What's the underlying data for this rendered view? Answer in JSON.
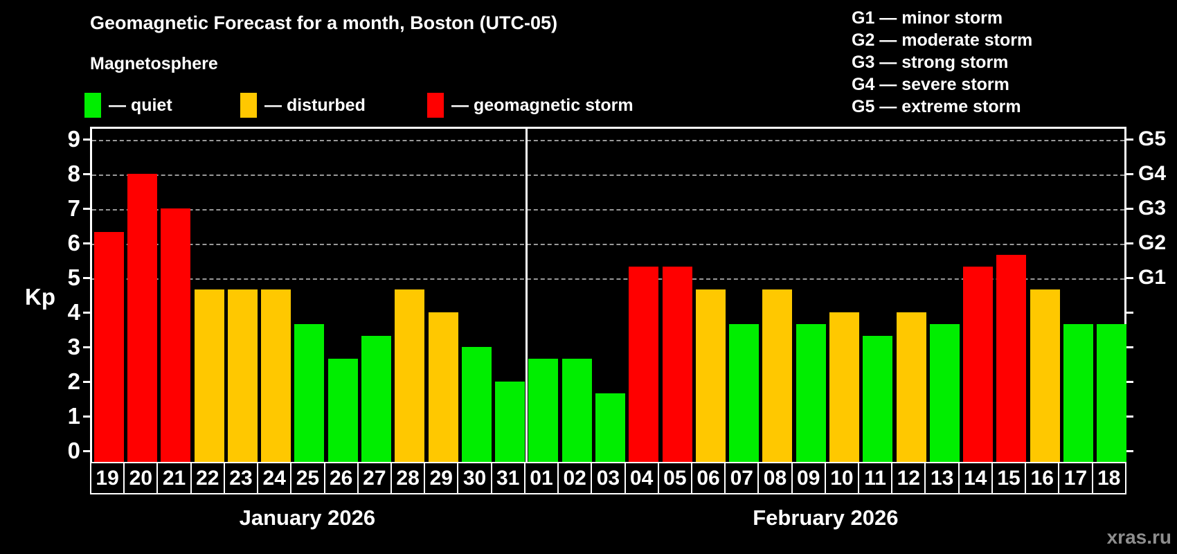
{
  "title": "Geomagnetic Forecast for a month, Boston (UTC-05)",
  "subtitle": "Magnetosphere",
  "legend": {
    "items": [
      {
        "name": "quiet",
        "label": "— quiet",
        "color": "#00ee00",
        "x": 122
      },
      {
        "name": "disturbed",
        "label": "— disturbed",
        "color": "#ffc800",
        "x": 347
      },
      {
        "name": "storm",
        "label": "— geomagnetic storm",
        "color": "#ff0000",
        "x": 617
      }
    ]
  },
  "g_legend": [
    "G1 — minor storm",
    "G2 — moderate storm",
    "G3 — strong storm",
    "G4 — severe storm",
    "G5 — extreme storm"
  ],
  "watermark": "xras.ru",
  "chart_data": {
    "type": "bar",
    "title": "Geomagnetic Forecast for a month, Boston (UTC-05)",
    "xlabel": "",
    "ylabel": "Kp",
    "ylim": [
      0,
      9
    ],
    "y_ticks": [
      0,
      1,
      2,
      3,
      4,
      5,
      6,
      7,
      8,
      9
    ],
    "grid": "horizontal dashed lines at Kp 5–9 only",
    "legend_position": "top-left",
    "status_colors": {
      "quiet": "#00ee00",
      "disturbed": "#ffc800",
      "storm": "#ff0000"
    },
    "right_axis_levels": [
      {
        "kp": 5,
        "label": "G1"
      },
      {
        "kp": 6,
        "label": "G2"
      },
      {
        "kp": 7,
        "label": "G3"
      },
      {
        "kp": 8,
        "label": "G4"
      },
      {
        "kp": 9,
        "label": "G5"
      }
    ],
    "months": [
      {
        "label": "January 2026",
        "days": 13
      },
      {
        "label": "February 2026",
        "days": 18
      }
    ],
    "series": [
      {
        "day": "19",
        "month": "January 2026",
        "kp": 6.33,
        "status": "storm"
      },
      {
        "day": "20",
        "month": "January 2026",
        "kp": 8.0,
        "status": "storm"
      },
      {
        "day": "21",
        "month": "January 2026",
        "kp": 7.0,
        "status": "storm"
      },
      {
        "day": "22",
        "month": "January 2026",
        "kp": 4.67,
        "status": "disturbed"
      },
      {
        "day": "23",
        "month": "January 2026",
        "kp": 4.67,
        "status": "disturbed"
      },
      {
        "day": "24",
        "month": "January 2026",
        "kp": 4.67,
        "status": "disturbed"
      },
      {
        "day": "25",
        "month": "January 2026",
        "kp": 3.67,
        "status": "quiet"
      },
      {
        "day": "26",
        "month": "January 2026",
        "kp": 2.67,
        "status": "quiet"
      },
      {
        "day": "27",
        "month": "January 2026",
        "kp": 3.33,
        "status": "quiet"
      },
      {
        "day": "28",
        "month": "January 2026",
        "kp": 4.67,
        "status": "disturbed"
      },
      {
        "day": "29",
        "month": "January 2026",
        "kp": 4.0,
        "status": "disturbed"
      },
      {
        "day": "30",
        "month": "January 2026",
        "kp": 3.0,
        "status": "quiet"
      },
      {
        "day": "31",
        "month": "January 2026",
        "kp": 2.0,
        "status": "quiet"
      },
      {
        "day": "01",
        "month": "February 2026",
        "kp": 2.67,
        "status": "quiet"
      },
      {
        "day": "02",
        "month": "February 2026",
        "kp": 2.67,
        "status": "quiet"
      },
      {
        "day": "03",
        "month": "February 2026",
        "kp": 1.67,
        "status": "quiet"
      },
      {
        "day": "04",
        "month": "February 2026",
        "kp": 5.33,
        "status": "storm"
      },
      {
        "day": "05",
        "month": "February 2026",
        "kp": 5.33,
        "status": "storm"
      },
      {
        "day": "06",
        "month": "February 2026",
        "kp": 4.67,
        "status": "disturbed"
      },
      {
        "day": "07",
        "month": "February 2026",
        "kp": 3.67,
        "status": "quiet"
      },
      {
        "day": "08",
        "month": "February 2026",
        "kp": 4.67,
        "status": "disturbed"
      },
      {
        "day": "09",
        "month": "February 2026",
        "kp": 3.67,
        "status": "quiet"
      },
      {
        "day": "10",
        "month": "February 2026",
        "kp": 4.0,
        "status": "disturbed"
      },
      {
        "day": "11",
        "month": "February 2026",
        "kp": 3.33,
        "status": "quiet"
      },
      {
        "day": "12",
        "month": "February 2026",
        "kp": 4.0,
        "status": "disturbed"
      },
      {
        "day": "13",
        "month": "February 2026",
        "kp": 3.67,
        "status": "quiet"
      },
      {
        "day": "14",
        "month": "February 2026",
        "kp": 5.33,
        "status": "storm"
      },
      {
        "day": "15",
        "month": "February 2026",
        "kp": 5.67,
        "status": "storm"
      },
      {
        "day": "16",
        "month": "February 2026",
        "kp": 4.67,
        "status": "disturbed"
      },
      {
        "day": "17",
        "month": "February 2026",
        "kp": 3.67,
        "status": "quiet"
      },
      {
        "day": "18",
        "month": "February 2026",
        "kp": 3.67,
        "status": "quiet"
      }
    ]
  }
}
